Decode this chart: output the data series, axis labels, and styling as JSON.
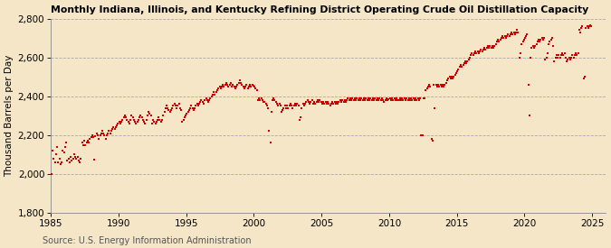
{
  "title": "Monthly Indiana, Illinois, and Kentucky Refining District Operating Crude Oil Distillation Capacity",
  "ylabel": "Thousand Barrels per Day",
  "source": "Source: U.S. Energy Information Administration",
  "background_color": "#f5e6c8",
  "plot_bg_color": "#f5e6c8",
  "dot_color": "#cc0000",
  "ylim": [
    1800,
    2800
  ],
  "yticks": [
    1800,
    2000,
    2200,
    2400,
    2600,
    2800
  ],
  "xlim": [
    1985,
    2026
  ],
  "xticks": [
    1985,
    1990,
    1995,
    2000,
    2005,
    2010,
    2015,
    2020,
    2025
  ],
  "title_fontsize": 7.8,
  "ylabel_fontsize": 7.5,
  "source_fontsize": 7.0,
  "tick_fontsize": 7.5,
  "monthly_data": [
    [
      1985.04,
      2000
    ],
    [
      1985.12,
      2120
    ],
    [
      1985.21,
      2080
    ],
    [
      1985.29,
      2060
    ],
    [
      1985.38,
      2100
    ],
    [
      1985.46,
      2140
    ],
    [
      1985.54,
      2060
    ],
    [
      1985.63,
      2080
    ],
    [
      1985.71,
      2050
    ],
    [
      1985.79,
      2060
    ],
    [
      1985.88,
      2120
    ],
    [
      1985.96,
      2110
    ],
    [
      1986.04,
      2140
    ],
    [
      1986.12,
      2160
    ],
    [
      1986.21,
      2070
    ],
    [
      1986.29,
      2080
    ],
    [
      1986.38,
      2060
    ],
    [
      1986.46,
      2090
    ],
    [
      1986.54,
      2070
    ],
    [
      1986.63,
      2080
    ],
    [
      1986.71,
      2100
    ],
    [
      1986.79,
      2090
    ],
    [
      1986.88,
      2080
    ],
    [
      1986.96,
      2090
    ],
    [
      1987.04,
      2070
    ],
    [
      1987.12,
      2060
    ],
    [
      1987.21,
      2080
    ],
    [
      1987.29,
      2160
    ],
    [
      1987.38,
      2150
    ],
    [
      1987.46,
      2170
    ],
    [
      1987.54,
      2150
    ],
    [
      1987.63,
      2160
    ],
    [
      1987.71,
      2170
    ],
    [
      1987.79,
      2160
    ],
    [
      1987.88,
      2180
    ],
    [
      1987.96,
      2190
    ],
    [
      1988.04,
      2200
    ],
    [
      1988.12,
      2190
    ],
    [
      1988.21,
      2075
    ],
    [
      1988.29,
      2195
    ],
    [
      1988.38,
      2210
    ],
    [
      1988.46,
      2200
    ],
    [
      1988.54,
      2180
    ],
    [
      1988.63,
      2200
    ],
    [
      1988.71,
      2210
    ],
    [
      1988.79,
      2220
    ],
    [
      1988.88,
      2210
    ],
    [
      1988.96,
      2200
    ],
    [
      1989.04,
      2180
    ],
    [
      1989.12,
      2200
    ],
    [
      1989.21,
      2210
    ],
    [
      1989.29,
      2220
    ],
    [
      1989.38,
      2210
    ],
    [
      1989.46,
      2220
    ],
    [
      1989.54,
      2230
    ],
    [
      1989.63,
      2240
    ],
    [
      1989.71,
      2230
    ],
    [
      1989.79,
      2240
    ],
    [
      1989.88,
      2250
    ],
    [
      1989.96,
      2260
    ],
    [
      1990.04,
      2270
    ],
    [
      1990.12,
      2260
    ],
    [
      1990.21,
      2270
    ],
    [
      1990.29,
      2280
    ],
    [
      1990.38,
      2290
    ],
    [
      1990.46,
      2300
    ],
    [
      1990.54,
      2290
    ],
    [
      1990.63,
      2280
    ],
    [
      1990.71,
      2270
    ],
    [
      1990.79,
      2260
    ],
    [
      1990.88,
      2280
    ],
    [
      1990.96,
      2300
    ],
    [
      1991.04,
      2290
    ],
    [
      1991.12,
      2280
    ],
    [
      1991.21,
      2270
    ],
    [
      1991.29,
      2260
    ],
    [
      1991.38,
      2270
    ],
    [
      1991.46,
      2280
    ],
    [
      1991.54,
      2290
    ],
    [
      1991.63,
      2300
    ],
    [
      1991.71,
      2290
    ],
    [
      1991.79,
      2280
    ],
    [
      1991.88,
      2270
    ],
    [
      1991.96,
      2260
    ],
    [
      1992.04,
      2280
    ],
    [
      1992.12,
      2300
    ],
    [
      1992.21,
      2320
    ],
    [
      1992.29,
      2310
    ],
    [
      1992.38,
      2300
    ],
    [
      1992.46,
      2260
    ],
    [
      1992.54,
      2280
    ],
    [
      1992.63,
      2270
    ],
    [
      1992.71,
      2260
    ],
    [
      1992.79,
      2270
    ],
    [
      1992.88,
      2280
    ],
    [
      1992.96,
      2290
    ],
    [
      1993.04,
      2280
    ],
    [
      1993.12,
      2270
    ],
    [
      1993.21,
      2280
    ],
    [
      1993.29,
      2300
    ],
    [
      1993.38,
      2320
    ],
    [
      1993.46,
      2340
    ],
    [
      1993.54,
      2350
    ],
    [
      1993.63,
      2340
    ],
    [
      1993.71,
      2330
    ],
    [
      1993.79,
      2320
    ],
    [
      1993.88,
      2330
    ],
    [
      1993.96,
      2340
    ],
    [
      1994.04,
      2350
    ],
    [
      1994.12,
      2360
    ],
    [
      1994.21,
      2350
    ],
    [
      1994.29,
      2340
    ],
    [
      1994.38,
      2350
    ],
    [
      1994.46,
      2360
    ],
    [
      1994.54,
      2340
    ],
    [
      1994.63,
      2330
    ],
    [
      1994.71,
      2270
    ],
    [
      1994.79,
      2280
    ],
    [
      1994.88,
      2290
    ],
    [
      1994.96,
      2300
    ],
    [
      1995.04,
      2310
    ],
    [
      1995.12,
      2320
    ],
    [
      1995.21,
      2330
    ],
    [
      1995.29,
      2340
    ],
    [
      1995.38,
      2350
    ],
    [
      1995.46,
      2340
    ],
    [
      1995.54,
      2330
    ],
    [
      1995.63,
      2340
    ],
    [
      1995.71,
      2350
    ],
    [
      1995.79,
      2360
    ],
    [
      1995.88,
      2350
    ],
    [
      1995.96,
      2360
    ],
    [
      1996.04,
      2370
    ],
    [
      1996.12,
      2380
    ],
    [
      1996.21,
      2370
    ],
    [
      1996.29,
      2360
    ],
    [
      1996.38,
      2380
    ],
    [
      1996.46,
      2390
    ],
    [
      1996.54,
      2380
    ],
    [
      1996.63,
      2370
    ],
    [
      1996.71,
      2380
    ],
    [
      1996.79,
      2390
    ],
    [
      1996.88,
      2400
    ],
    [
      1996.96,
      2410
    ],
    [
      1997.04,
      2420
    ],
    [
      1997.12,
      2410
    ],
    [
      1997.21,
      2420
    ],
    [
      1997.29,
      2430
    ],
    [
      1997.38,
      2440
    ],
    [
      1997.46,
      2450
    ],
    [
      1997.54,
      2440
    ],
    [
      1997.63,
      2450
    ],
    [
      1997.71,
      2460
    ],
    [
      1997.79,
      2450
    ],
    [
      1997.88,
      2460
    ],
    [
      1997.96,
      2470
    ],
    [
      1998.04,
      2460
    ],
    [
      1998.12,
      2450
    ],
    [
      1998.21,
      2460
    ],
    [
      1998.29,
      2470
    ],
    [
      1998.38,
      2450
    ],
    [
      1998.46,
      2460
    ],
    [
      1998.54,
      2450
    ],
    [
      1998.63,
      2440
    ],
    [
      1998.71,
      2450
    ],
    [
      1998.79,
      2460
    ],
    [
      1998.88,
      2470
    ],
    [
      1998.96,
      2480
    ],
    [
      1999.04,
      2470
    ],
    [
      1999.12,
      2460
    ],
    [
      1999.21,
      2450
    ],
    [
      1999.29,
      2440
    ],
    [
      1999.38,
      2450
    ],
    [
      1999.46,
      2460
    ],
    [
      1999.54,
      2440
    ],
    [
      1999.63,
      2450
    ],
    [
      1999.71,
      2460
    ],
    [
      1999.79,
      2450
    ],
    [
      1999.88,
      2460
    ],
    [
      1999.96,
      2455
    ],
    [
      2000.04,
      2450
    ],
    [
      2000.12,
      2440
    ],
    [
      2000.21,
      2430
    ],
    [
      2000.29,
      2380
    ],
    [
      2000.38,
      2390
    ],
    [
      2000.46,
      2380
    ],
    [
      2000.54,
      2390
    ],
    [
      2000.63,
      2380
    ],
    [
      2000.71,
      2370
    ],
    [
      2000.79,
      2370
    ],
    [
      2000.88,
      2360
    ],
    [
      2000.96,
      2350
    ],
    [
      2001.04,
      2340
    ],
    [
      2001.12,
      2220
    ],
    [
      2001.21,
      2160
    ],
    [
      2001.29,
      2320
    ],
    [
      2001.38,
      2380
    ],
    [
      2001.46,
      2390
    ],
    [
      2001.54,
      2380
    ],
    [
      2001.63,
      2370
    ],
    [
      2001.71,
      2360
    ],
    [
      2001.79,
      2350
    ],
    [
      2001.88,
      2360
    ],
    [
      2001.96,
      2350
    ],
    [
      2002.04,
      2320
    ],
    [
      2002.12,
      2330
    ],
    [
      2002.21,
      2340
    ],
    [
      2002.29,
      2350
    ],
    [
      2002.38,
      2340
    ],
    [
      2002.46,
      2350
    ],
    [
      2002.54,
      2340
    ],
    [
      2002.63,
      2350
    ],
    [
      2002.71,
      2360
    ],
    [
      2002.79,
      2350
    ],
    [
      2002.88,
      2340
    ],
    [
      2002.96,
      2350
    ],
    [
      2003.04,
      2360
    ],
    [
      2003.12,
      2350
    ],
    [
      2003.21,
      2360
    ],
    [
      2003.29,
      2350
    ],
    [
      2003.38,
      2280
    ],
    [
      2003.46,
      2290
    ],
    [
      2003.54,
      2340
    ],
    [
      2003.63,
      2360
    ],
    [
      2003.71,
      2350
    ],
    [
      2003.79,
      2360
    ],
    [
      2003.88,
      2370
    ],
    [
      2003.96,
      2380
    ],
    [
      2004.04,
      2370
    ],
    [
      2004.12,
      2360
    ],
    [
      2004.21,
      2370
    ],
    [
      2004.29,
      2380
    ],
    [
      2004.38,
      2360
    ],
    [
      2004.46,
      2370
    ],
    [
      2004.54,
      2360
    ],
    [
      2004.63,
      2370
    ],
    [
      2004.71,
      2380
    ],
    [
      2004.79,
      2370
    ],
    [
      2004.88,
      2380
    ],
    [
      2004.96,
      2370
    ],
    [
      2005.04,
      2360
    ],
    [
      2005.12,
      2370
    ],
    [
      2005.21,
      2360
    ],
    [
      2005.29,
      2370
    ],
    [
      2005.38,
      2360
    ],
    [
      2005.46,
      2370
    ],
    [
      2005.54,
      2360
    ],
    [
      2005.63,
      2350
    ],
    [
      2005.71,
      2360
    ],
    [
      2005.79,
      2370
    ],
    [
      2005.88,
      2360
    ],
    [
      2005.96,
      2370
    ],
    [
      2006.04,
      2360
    ],
    [
      2006.12,
      2370
    ],
    [
      2006.21,
      2360
    ],
    [
      2006.29,
      2370
    ],
    [
      2006.38,
      2380
    ],
    [
      2006.46,
      2370
    ],
    [
      2006.54,
      2380
    ],
    [
      2006.63,
      2370
    ],
    [
      2006.71,
      2380
    ],
    [
      2006.79,
      2370
    ],
    [
      2006.88,
      2380
    ],
    [
      2006.96,
      2390
    ],
    [
      2007.04,
      2380
    ],
    [
      2007.12,
      2390
    ],
    [
      2007.21,
      2380
    ],
    [
      2007.29,
      2390
    ],
    [
      2007.38,
      2380
    ],
    [
      2007.46,
      2390
    ],
    [
      2007.54,
      2380
    ],
    [
      2007.63,
      2390
    ],
    [
      2007.71,
      2380
    ],
    [
      2007.79,
      2390
    ],
    [
      2007.88,
      2380
    ],
    [
      2007.96,
      2390
    ],
    [
      2008.04,
      2380
    ],
    [
      2008.12,
      2390
    ],
    [
      2008.21,
      2380
    ],
    [
      2008.29,
      2390
    ],
    [
      2008.38,
      2380
    ],
    [
      2008.46,
      2390
    ],
    [
      2008.54,
      2380
    ],
    [
      2008.63,
      2390
    ],
    [
      2008.71,
      2380
    ],
    [
      2008.79,
      2390
    ],
    [
      2008.88,
      2380
    ],
    [
      2008.96,
      2390
    ],
    [
      2009.04,
      2380
    ],
    [
      2009.12,
      2390
    ],
    [
      2009.21,
      2380
    ],
    [
      2009.29,
      2390
    ],
    [
      2009.38,
      2380
    ],
    [
      2009.46,
      2390
    ],
    [
      2009.54,
      2380
    ],
    [
      2009.63,
      2370
    ],
    [
      2009.71,
      2380
    ],
    [
      2009.79,
      2390
    ],
    [
      2009.88,
      2380
    ],
    [
      2009.96,
      2385
    ],
    [
      2010.04,
      2390
    ],
    [
      2010.12,
      2380
    ],
    [
      2010.21,
      2390
    ],
    [
      2010.29,
      2380
    ],
    [
      2010.38,
      2390
    ],
    [
      2010.46,
      2380
    ],
    [
      2010.54,
      2390
    ],
    [
      2010.63,
      2380
    ],
    [
      2010.71,
      2380
    ],
    [
      2010.79,
      2390
    ],
    [
      2010.88,
      2380
    ],
    [
      2010.96,
      2390
    ],
    [
      2011.04,
      2380
    ],
    [
      2011.12,
      2390
    ],
    [
      2011.21,
      2380
    ],
    [
      2011.29,
      2390
    ],
    [
      2011.38,
      2380
    ],
    [
      2011.46,
      2390
    ],
    [
      2011.54,
      2380
    ],
    [
      2011.63,
      2390
    ],
    [
      2011.71,
      2380
    ],
    [
      2011.79,
      2390
    ],
    [
      2011.88,
      2380
    ],
    [
      2011.96,
      2390
    ],
    [
      2012.04,
      2380
    ],
    [
      2012.12,
      2390
    ],
    [
      2012.21,
      2380
    ],
    [
      2012.29,
      2390
    ],
    [
      2012.38,
      2200
    ],
    [
      2012.46,
      2200
    ],
    [
      2012.54,
      2390
    ],
    [
      2012.63,
      2390
    ],
    [
      2012.71,
      2430
    ],
    [
      2012.79,
      2440
    ],
    [
      2012.88,
      2450
    ],
    [
      2012.96,
      2460
    ],
    [
      2013.04,
      2450
    ],
    [
      2013.12,
      2180
    ],
    [
      2013.21,
      2170
    ],
    [
      2013.29,
      2460
    ],
    [
      2013.38,
      2340
    ],
    [
      2013.46,
      2460
    ],
    [
      2013.54,
      2450
    ],
    [
      2013.63,
      2460
    ],
    [
      2013.71,
      2450
    ],
    [
      2013.79,
      2460
    ],
    [
      2013.88,
      2450
    ],
    [
      2013.96,
      2460
    ],
    [
      2014.04,
      2450
    ],
    [
      2014.12,
      2460
    ],
    [
      2014.21,
      2470
    ],
    [
      2014.29,
      2480
    ],
    [
      2014.38,
      2490
    ],
    [
      2014.46,
      2500
    ],
    [
      2014.54,
      2490
    ],
    [
      2014.63,
      2500
    ],
    [
      2014.71,
      2490
    ],
    [
      2014.79,
      2500
    ],
    [
      2014.88,
      2510
    ],
    [
      2014.96,
      2520
    ],
    [
      2015.04,
      2530
    ],
    [
      2015.12,
      2540
    ],
    [
      2015.21,
      2550
    ],
    [
      2015.29,
      2560
    ],
    [
      2015.38,
      2550
    ],
    [
      2015.46,
      2560
    ],
    [
      2015.54,
      2570
    ],
    [
      2015.63,
      2580
    ],
    [
      2015.71,
      2570
    ],
    [
      2015.79,
      2580
    ],
    [
      2015.88,
      2590
    ],
    [
      2015.96,
      2600
    ],
    [
      2016.04,
      2610
    ],
    [
      2016.12,
      2620
    ],
    [
      2016.21,
      2610
    ],
    [
      2016.29,
      2620
    ],
    [
      2016.38,
      2630
    ],
    [
      2016.46,
      2620
    ],
    [
      2016.54,
      2630
    ],
    [
      2016.63,
      2620
    ],
    [
      2016.71,
      2630
    ],
    [
      2016.79,
      2640
    ],
    [
      2016.88,
      2630
    ],
    [
      2016.96,
      2640
    ],
    [
      2017.04,
      2650
    ],
    [
      2017.12,
      2640
    ],
    [
      2017.21,
      2650
    ],
    [
      2017.29,
      2660
    ],
    [
      2017.38,
      2650
    ],
    [
      2017.46,
      2660
    ],
    [
      2017.54,
      2650
    ],
    [
      2017.63,
      2660
    ],
    [
      2017.71,
      2650
    ],
    [
      2017.79,
      2660
    ],
    [
      2017.88,
      2670
    ],
    [
      2017.96,
      2680
    ],
    [
      2018.04,
      2690
    ],
    [
      2018.12,
      2680
    ],
    [
      2018.21,
      2690
    ],
    [
      2018.29,
      2700
    ],
    [
      2018.38,
      2710
    ],
    [
      2018.46,
      2700
    ],
    [
      2018.54,
      2710
    ],
    [
      2018.63,
      2700
    ],
    [
      2018.71,
      2710
    ],
    [
      2018.79,
      2720
    ],
    [
      2018.88,
      2710
    ],
    [
      2018.96,
      2720
    ],
    [
      2019.04,
      2730
    ],
    [
      2019.12,
      2720
    ],
    [
      2019.21,
      2730
    ],
    [
      2019.29,
      2720
    ],
    [
      2019.38,
      2730
    ],
    [
      2019.46,
      2740
    ],
    [
      2019.54,
      2730
    ],
    [
      2019.63,
      2600
    ],
    [
      2019.71,
      2620
    ],
    [
      2019.79,
      2670
    ],
    [
      2019.88,
      2680
    ],
    [
      2019.96,
      2690
    ],
    [
      2020.04,
      2700
    ],
    [
      2020.12,
      2710
    ],
    [
      2020.21,
      2720
    ],
    [
      2020.29,
      2460
    ],
    [
      2020.38,
      2300
    ],
    [
      2020.46,
      2600
    ],
    [
      2020.54,
      2650
    ],
    [
      2020.63,
      2660
    ],
    [
      2020.71,
      2650
    ],
    [
      2020.79,
      2660
    ],
    [
      2020.88,
      2670
    ],
    [
      2020.96,
      2680
    ],
    [
      2021.04,
      2690
    ],
    [
      2021.12,
      2680
    ],
    [
      2021.21,
      2690
    ],
    [
      2021.29,
      2700
    ],
    [
      2021.38,
      2690
    ],
    [
      2021.46,
      2700
    ],
    [
      2021.54,
      2590
    ],
    [
      2021.63,
      2600
    ],
    [
      2021.71,
      2620
    ],
    [
      2021.79,
      2670
    ],
    [
      2021.88,
      2680
    ],
    [
      2021.96,
      2690
    ],
    [
      2022.04,
      2700
    ],
    [
      2022.12,
      2660
    ],
    [
      2022.21,
      2580
    ],
    [
      2022.29,
      2600
    ],
    [
      2022.38,
      2610
    ],
    [
      2022.46,
      2600
    ],
    [
      2022.54,
      2610
    ],
    [
      2022.63,
      2600
    ],
    [
      2022.71,
      2610
    ],
    [
      2022.79,
      2620
    ],
    [
      2022.88,
      2610
    ],
    [
      2022.96,
      2620
    ],
    [
      2023.04,
      2600
    ],
    [
      2023.12,
      2580
    ],
    [
      2023.21,
      2590
    ],
    [
      2023.29,
      2600
    ],
    [
      2023.38,
      2590
    ],
    [
      2023.46,
      2600
    ],
    [
      2023.54,
      2610
    ],
    [
      2023.63,
      2600
    ],
    [
      2023.71,
      2610
    ],
    [
      2023.79,
      2620
    ],
    [
      2023.88,
      2610
    ],
    [
      2023.96,
      2620
    ],
    [
      2024.04,
      2740
    ],
    [
      2024.12,
      2730
    ],
    [
      2024.21,
      2750
    ],
    [
      2024.29,
      2760
    ],
    [
      2024.38,
      2490
    ],
    [
      2024.46,
      2500
    ],
    [
      2024.54,
      2750
    ],
    [
      2024.63,
      2760
    ],
    [
      2024.71,
      2750
    ],
    [
      2024.79,
      2760
    ],
    [
      2024.88,
      2765
    ],
    [
      2024.96,
      2760
    ]
  ]
}
